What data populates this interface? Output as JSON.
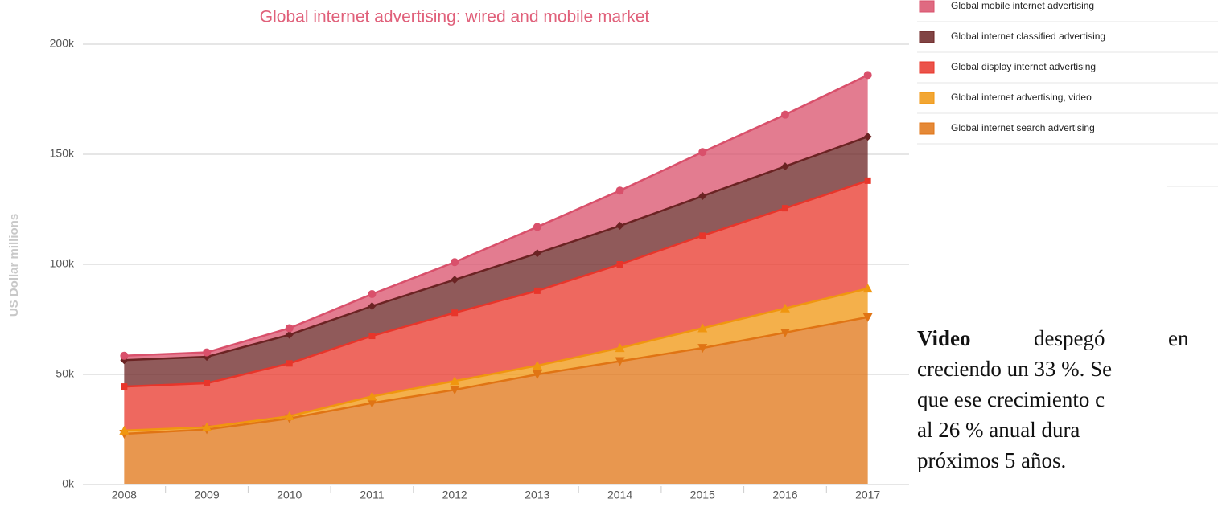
{
  "chart_data": {
    "type": "stacked_area",
    "title": "Global internet advertising: wired and mobile market",
    "y_label": "US Dollar millions",
    "categories": [
      "2008",
      "2009",
      "2010",
      "2011",
      "2012",
      "2013",
      "2014",
      "2015",
      "2016",
      "2017"
    ],
    "series": [
      {
        "name": "Global mobile internet advertising",
        "color": "#d9506b",
        "marker": "circle",
        "values": [
          2,
          2,
          3,
          5.5,
          8,
          12,
          16,
          20,
          23.5,
          28
        ]
      },
      {
        "name": "Global internet classified advertising",
        "color": "#6b2323",
        "marker": "diamond",
        "values": [
          12,
          12,
          13,
          13.5,
          15,
          17,
          17.5,
          18,
          19,
          20
        ]
      },
      {
        "name": "Global display internet advertising",
        "color": "#e8352a",
        "marker": "square",
        "values": [
          20,
          20,
          24,
          27.5,
          31,
          34,
          38,
          42,
          45.5,
          49
        ]
      },
      {
        "name": "Global internet advertising, video",
        "color": "#f0960f",
        "marker": "triangle",
        "values": [
          1.5,
          1,
          1,
          3,
          4,
          4,
          6,
          9,
          11,
          13
        ]
      },
      {
        "name": "Global internet search advertising",
        "color": "#e07414",
        "marker": "triangle-down",
        "values": [
          23,
          25,
          30,
          37,
          43,
          50,
          56,
          62,
          69,
          76
        ]
      }
    ],
    "ylim": [
      0,
      200
    ],
    "yticks": [
      {
        "value": 0,
        "label": "0k"
      },
      {
        "value": 50,
        "label": "50k"
      },
      {
        "value": 100,
        "label": "100k"
      },
      {
        "value": 150,
        "label": "150k"
      },
      {
        "value": 200,
        "label": "200k"
      }
    ],
    "grid": true,
    "legend": "right"
  },
  "annotation": {
    "lead": "Video",
    "first": "despegó",
    "first_end": "en",
    "lines": [
      "creciendo un 33 %. Se",
      "que ese crecimiento c",
      "al 26 % anual dura",
      "próximos 5 años."
    ]
  }
}
